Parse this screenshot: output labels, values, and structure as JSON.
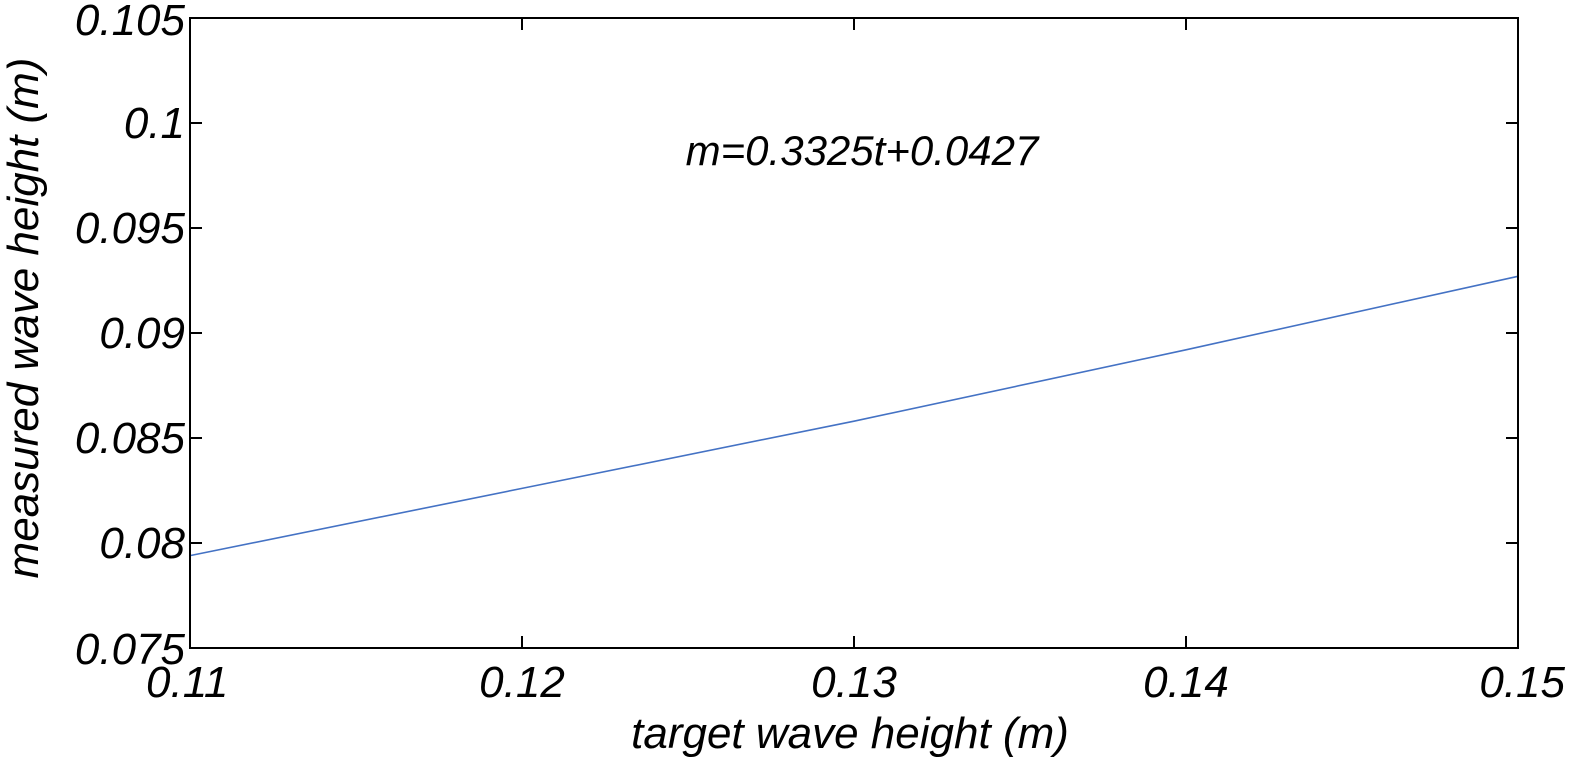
{
  "chart_data": {
    "type": "line",
    "title": "",
    "xlabel": "target wave height (m)",
    "ylabel": "measured wave height (m)",
    "xlim": [
      0.11,
      0.15
    ],
    "ylim": [
      0.075,
      0.105
    ],
    "xticks": [
      "0.11",
      "0.12",
      "0.13",
      "0.14",
      "0.15"
    ],
    "yticks": [
      "0.075",
      "0.08",
      "0.085",
      "0.09",
      "0.095",
      "0.1",
      "0.105"
    ],
    "grid": false,
    "annotation": "m=0.3325t+0.0427",
    "series": [
      {
        "color": "#4472c4",
        "x": [
          0.11,
          0.12,
          0.13,
          0.14,
          0.15
        ],
        "y": [
          0.0794,
          0.0826,
          0.0858,
          0.0892,
          0.0927
        ]
      }
    ]
  }
}
